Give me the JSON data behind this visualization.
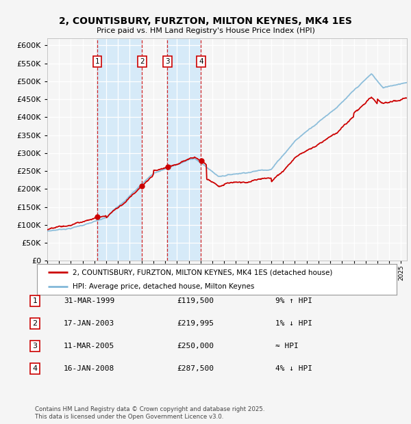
{
  "title": "2, COUNTISBURY, FURZTON, MILTON KEYNES, MK4 1ES",
  "subtitle": "Price paid vs. HM Land Registry's House Price Index (HPI)",
  "ylim": [
    0,
    620000
  ],
  "yticks": [
    0,
    50000,
    100000,
    150000,
    200000,
    250000,
    300000,
    350000,
    400000,
    450000,
    500000,
    550000,
    600000
  ],
  "hpi_color": "#82b8d8",
  "price_color": "#cc0000",
  "vline_color": "#cc0000",
  "shade_color": "#d6eaf8",
  "background_color": "#f5f5f5",
  "plot_bg_color": "#f5f5f5",
  "grid_color": "#ffffff",
  "transactions": [
    {
      "label": "1",
      "date_str": "31-MAR-1999",
      "year": 1999.25,
      "price": 119500,
      "note": "9% ↑ HPI"
    },
    {
      "label": "2",
      "date_str": "17-JAN-2003",
      "year": 2003.04,
      "price": 219995,
      "note": "1% ↓ HPI"
    },
    {
      "label": "3",
      "date_str": "11-MAR-2005",
      "year": 2005.19,
      "price": 250000,
      "note": "≈ HPI"
    },
    {
      "label": "4",
      "date_str": "16-JAN-2008",
      "year": 2008.04,
      "price": 287500,
      "note": "4% ↓ HPI"
    }
  ],
  "legend_line1": "2, COUNTISBURY, FURZTON, MILTON KEYNES, MK4 1ES (detached house)",
  "legend_line2": "HPI: Average price, detached house, Milton Keynes",
  "footer1": "Contains HM Land Registry data © Crown copyright and database right 2025.",
  "footer2": "This data is licensed under the Open Government Licence v3.0.",
  "table_rows": [
    [
      "1",
      "31-MAR-1999",
      "£119,500",
      "9% ↑ HPI"
    ],
    [
      "2",
      "17-JAN-2003",
      "£219,995",
      "1% ↓ HPI"
    ],
    [
      "3",
      "11-MAR-2005",
      "£250,000",
      "≈ HPI"
    ],
    [
      "4",
      "16-JAN-2008",
      "£287,500",
      "4% ↓ HPI"
    ]
  ],
  "xlim_start": 1995,
  "xlim_end": 2025.5
}
